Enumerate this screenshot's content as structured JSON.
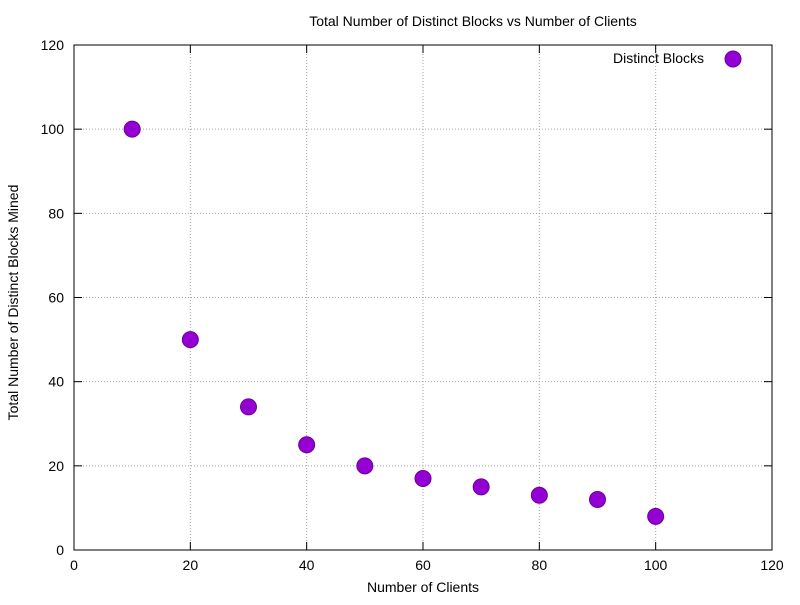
{
  "chart_data": {
    "type": "scatter",
    "title": "Total Number of Distinct Blocks vs Number of Clients",
    "xlabel": "Number of Clients",
    "ylabel": "Total Number of Distinct Blocks Mined",
    "xlim": [
      0,
      120
    ],
    "ylim": [
      0,
      120
    ],
    "x_ticks": [
      0,
      20,
      40,
      60,
      80,
      100,
      120
    ],
    "y_ticks": [
      0,
      20,
      40,
      60,
      80,
      100,
      120
    ],
    "grid": true,
    "legend_position": "top-right",
    "series": [
      {
        "name": "Distinct Blocks",
        "color": "#9400d3",
        "marker": "circle",
        "x": [
          10,
          20,
          30,
          40,
          50,
          60,
          70,
          80,
          90,
          100
        ],
        "y": [
          100,
          50,
          34,
          25,
          20,
          17,
          15,
          13,
          12,
          8
        ]
      }
    ]
  }
}
